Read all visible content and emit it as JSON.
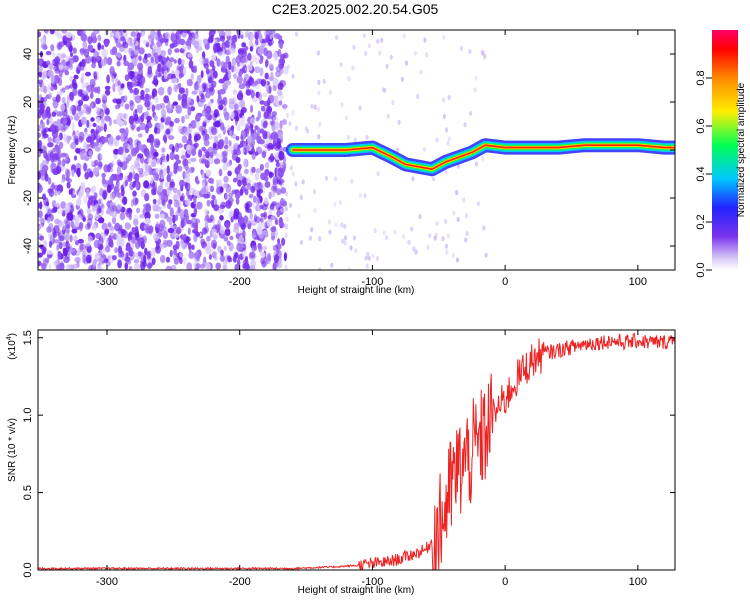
{
  "title": "C2E3.2025.002.20.54.G05",
  "colors": {
    "spectrogram_noise": "#7a33ee",
    "snr_line": "#ee2222",
    "colorbar": [
      "#b7a7f0",
      "#7a33ee",
      "#2222ff",
      "#00c8ff",
      "#00ff55",
      "#ffee00",
      "#ff8800",
      "#ff0000",
      "#ff0066"
    ]
  },
  "chart_data": [
    {
      "type": "heatmap",
      "title": "C2E3.2025.002.20.54.G05",
      "xlabel": "Height of straight line (km)",
      "ylabel": "Frequency (Hz)",
      "xlim": [
        -352,
        128
      ],
      "ylim": [
        -50,
        50
      ],
      "x_ticks": [
        -300,
        -200,
        -100,
        0,
        100
      ],
      "y_ticks": [
        -40,
        -20,
        0,
        20,
        40
      ],
      "colorbar": {
        "label": "Normalized spectral amplitude",
        "range": [
          0,
          1
        ],
        "ticks": [
          "0.0",
          "0.2",
          "0.4",
          "0.6",
          "0.8"
        ]
      },
      "noise_region_km": [
        -352,
        -165
      ],
      "signal_track": {
        "start_km": -165,
        "x": [
          -160,
          -140,
          -120,
          -100,
          -85,
          -75,
          -65,
          -55,
          -45,
          -35,
          -25,
          -15,
          0,
          20,
          40,
          60,
          80,
          100,
          120,
          128
        ],
        "y": [
          0,
          0,
          0,
          1,
          -3,
          -6,
          -7,
          -8,
          -5,
          -3,
          -1,
          2,
          1,
          1,
          1,
          2,
          2,
          2,
          1,
          1
        ]
      }
    },
    {
      "type": "line",
      "xlabel": "Height of straight line (km)",
      "ylabel": "SNR (10 * v/v)",
      "multiplier": "(x10",
      "multiplier_exp": "4",
      "multiplier_close": ")",
      "xlim": [
        -352,
        128
      ],
      "ylim": [
        0,
        1.55
      ],
      "x_ticks": [
        -300,
        -200,
        -100,
        0,
        100
      ],
      "y_ticks": [
        "0.0",
        "0.5",
        "1.0",
        "1.5"
      ],
      "series": [
        {
          "x": [
            -352,
            -300,
            -250,
            -200,
            -160,
            -130,
            -110,
            -100,
            -90,
            -80,
            -70,
            -60,
            -50,
            -45,
            -40,
            -35,
            -30,
            -25,
            -20,
            -15,
            -10,
            -5,
            0,
            5,
            10,
            20,
            30,
            40,
            50,
            60,
            70,
            80,
            90,
            100,
            110,
            120,
            128
          ],
          "y": [
            0.01,
            0.01,
            0.01,
            0.01,
            0.01,
            0.02,
            0.03,
            0.04,
            0.05,
            0.07,
            0.1,
            0.13,
            0.25,
            0.4,
            0.55,
            0.65,
            0.7,
            0.75,
            0.8,
            0.88,
            0.98,
            1.05,
            1.1,
            1.18,
            1.25,
            1.35,
            1.4,
            1.42,
            1.44,
            1.46,
            1.47,
            1.48,
            1.47,
            1.48,
            1.47,
            1.47,
            1.5
          ]
        }
      ]
    }
  ]
}
